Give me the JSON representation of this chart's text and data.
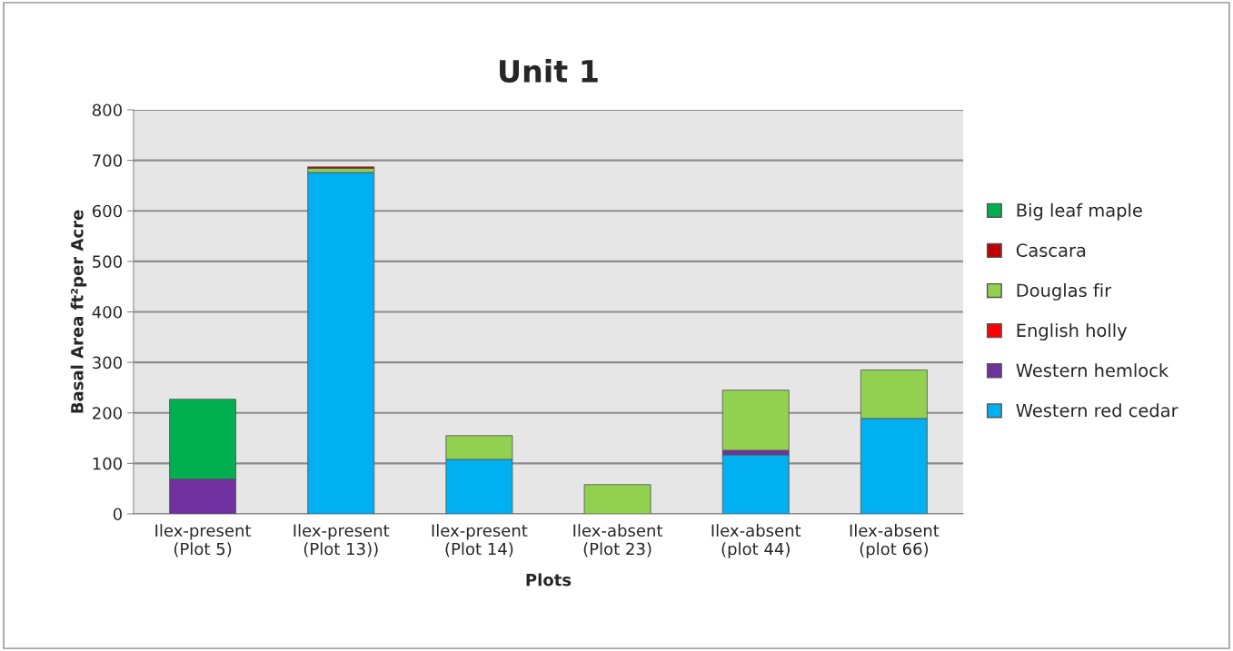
{
  "chart_data": {
    "type": "bar",
    "title": "Unit 1",
    "xlabel": "Plots",
    "ylabel": "Basal Area ft²per Acre",
    "categories": [
      "Ilex-present\n(Plot 5)",
      "Ilex-present\n(Plot 13))",
      "Ilex-present\n(Plot 14)",
      "Ilex-absent\n(Plot 23)",
      "Ilex-absent\n(plot 44)",
      "Ilex-absent\n(plot 66)"
    ],
    "stacked": true,
    "series": [
      {
        "name": "Western red cedar",
        "color": "#00b0f0",
        "values": [
          0,
          676,
          108,
          0,
          117,
          189
        ]
      },
      {
        "name": "Western hemlock",
        "color": "#7030a0",
        "values": [
          69,
          0,
          0,
          0,
          9,
          0
        ]
      },
      {
        "name": "English holly",
        "color": "#ff0000",
        "values": [
          0,
          0,
          0,
          0,
          0,
          0
        ]
      },
      {
        "name": "Douglas fir",
        "color": "#92d050",
        "values": [
          0,
          8,
          47,
          58,
          119,
          96
        ]
      },
      {
        "name": "Cascara",
        "color": "#c00000",
        "values": [
          0,
          3,
          0,
          0,
          0,
          0
        ]
      },
      {
        "name": "Big leaf maple",
        "color": "#00b050",
        "values": [
          158,
          0,
          0,
          0,
          0,
          0
        ]
      }
    ],
    "ylim": [
      0,
      800
    ],
    "yticks": [
      0,
      100,
      200,
      300,
      400,
      500,
      600,
      700,
      800
    ],
    "grid": "y",
    "legend": "right"
  }
}
